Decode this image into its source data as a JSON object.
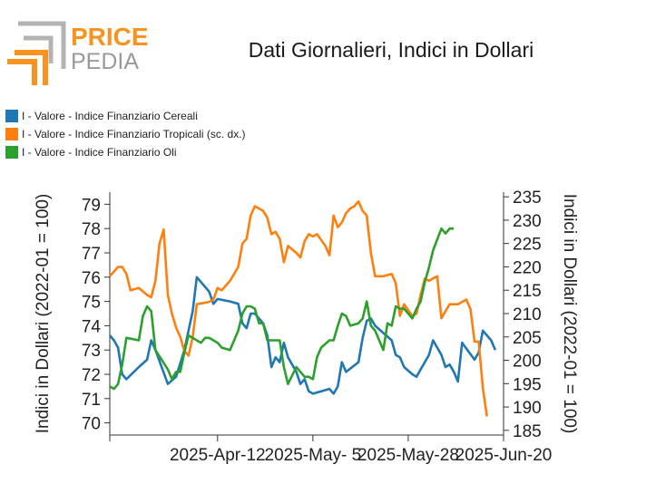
{
  "brand": {
    "name_top": "PRICE",
    "name_bottom": "PEDIA"
  },
  "colors": {
    "orange": "#f7931e",
    "gray": "#8c8c8c",
    "cereali": "#1f77b4",
    "tropicali": "#ff7f0e",
    "oli": "#2ca02c"
  },
  "chart_data": {
    "type": "line",
    "title": "Dati Giornalieri, Indici in Dollari",
    "ylabel_left": "Indici in Dollari (2022-01 = 100)",
    "ylabel_right": "Indici in Dollari (2022-01 = 100)",
    "xlim": [
      "2025-03-17",
      "2025-06-20"
    ],
    "x_ticks": [
      "2025-Apr-12",
      "2025-May- 5",
      "2025-May-28",
      "2025-Jun-20"
    ],
    "ylim_left": [
      69.5,
      79.5
    ],
    "ylim_right": [
      184,
      236
    ],
    "y_ticks_left": [
      70,
      71,
      72,
      73,
      74,
      75,
      76,
      77,
      78,
      79
    ],
    "y_ticks_right": [
      185,
      190,
      195,
      200,
      205,
      210,
      215,
      220,
      225,
      230,
      235
    ],
    "legend_position": "top-left",
    "series": [
      {
        "name": "I - Valore - Indice Finanziario Cereali",
        "axis": "left",
        "color": "#1f77b4",
        "points": [
          [
            "2025-03-17",
            73.6
          ],
          [
            "2025-03-18",
            73.4
          ],
          [
            "2025-03-19",
            73.1
          ],
          [
            "2025-03-20",
            72.0
          ],
          [
            "2025-03-21",
            71.8
          ],
          [
            "2025-03-24",
            72.3
          ],
          [
            "2025-03-26",
            72.6
          ],
          [
            "2025-03-27",
            73.4
          ],
          [
            "2025-03-28",
            73.0
          ],
          [
            "2025-03-31",
            71.6
          ],
          [
            "2025-04-02",
            71.9
          ],
          [
            "2025-04-04",
            73.0
          ],
          [
            "2025-04-06",
            74.6
          ],
          [
            "2025-04-07",
            76.0
          ],
          [
            "2025-04-10",
            75.4
          ],
          [
            "2025-04-11",
            74.9
          ],
          [
            "2025-04-12",
            75.1
          ],
          [
            "2025-04-15",
            75.0
          ],
          [
            "2025-04-17",
            74.9
          ],
          [
            "2025-04-18",
            74.1
          ],
          [
            "2025-04-19",
            73.9
          ],
          [
            "2025-04-20",
            74.5
          ],
          [
            "2025-04-21",
            74.5
          ],
          [
            "2025-04-23",
            74.1
          ],
          [
            "2025-04-24",
            73.6
          ],
          [
            "2025-04-25",
            72.3
          ],
          [
            "2025-04-26",
            72.7
          ],
          [
            "2025-04-27",
            72.5
          ],
          [
            "2025-04-28",
            73.3
          ],
          [
            "2025-04-29",
            72.7
          ],
          [
            "2025-05-01",
            72.1
          ],
          [
            "2025-05-02",
            71.6
          ],
          [
            "2025-05-03",
            71.8
          ],
          [
            "2025-05-04",
            71.3
          ],
          [
            "2025-05-05",
            71.2
          ],
          [
            "2025-05-09",
            71.4
          ],
          [
            "2025-05-10",
            71.2
          ],
          [
            "2025-05-11",
            71.5
          ],
          [
            "2025-05-12",
            72.5
          ],
          [
            "2025-05-13",
            72.1
          ],
          [
            "2025-05-16",
            72.5
          ],
          [
            "2025-05-17",
            73.5
          ],
          [
            "2025-05-18",
            74.2
          ],
          [
            "2025-05-19",
            74.3
          ],
          [
            "2025-05-20",
            74.0
          ],
          [
            "2025-05-24",
            73.4
          ],
          [
            "2025-05-25",
            72.8
          ],
          [
            "2025-05-26",
            72.7
          ],
          [
            "2025-05-27",
            72.3
          ],
          [
            "2025-05-29",
            72.0
          ],
          [
            "2025-05-30",
            71.9
          ],
          [
            "2025-05-31",
            72.2
          ],
          [
            "2025-06-02",
            72.8
          ],
          [
            "2025-06-03",
            73.4
          ],
          [
            "2025-06-05",
            72.8
          ],
          [
            "2025-06-06",
            72.3
          ],
          [
            "2025-06-07",
            72.4
          ],
          [
            "2025-06-08",
            72.1
          ],
          [
            "2025-06-09",
            71.7
          ],
          [
            "2025-06-10",
            73.3
          ],
          [
            "2025-06-13",
            72.6
          ],
          [
            "2025-06-14",
            72.9
          ],
          [
            "2025-06-15",
            73.8
          ],
          [
            "2025-06-17",
            73.4
          ],
          [
            "2025-06-18",
            73.0
          ]
        ]
      },
      {
        "name": "I - Valore - Indice Finanziario Tropicali (sc. dx.)",
        "axis": "right",
        "color": "#ff7f0e",
        "points": [
          [
            "2025-03-17",
            218.0
          ],
          [
            "2025-03-18",
            219.0
          ],
          [
            "2025-03-19",
            220.0
          ],
          [
            "2025-03-20",
            220.0
          ],
          [
            "2025-03-21",
            218.5
          ],
          [
            "2025-03-22",
            215.0
          ],
          [
            "2025-03-24",
            215.5
          ],
          [
            "2025-03-26",
            214.0
          ],
          [
            "2025-03-27",
            213.5
          ],
          [
            "2025-03-28",
            217.0
          ],
          [
            "2025-03-29",
            225.0
          ],
          [
            "2025-03-30",
            228.0
          ],
          [
            "2025-03-31",
            214.0
          ],
          [
            "2025-04-01",
            210.0
          ],
          [
            "2025-04-02",
            207.0
          ],
          [
            "2025-04-03",
            205.0
          ],
          [
            "2025-04-04",
            202.0
          ],
          [
            "2025-04-05",
            201.0
          ],
          [
            "2025-04-06",
            205.0
          ],
          [
            "2025-04-07",
            212.0
          ],
          [
            "2025-04-10",
            212.5
          ],
          [
            "2025-04-11",
            213.0
          ],
          [
            "2025-04-12",
            215.5
          ],
          [
            "2025-04-13",
            215.0
          ],
          [
            "2025-04-14",
            216.0
          ],
          [
            "2025-04-15",
            217.0
          ],
          [
            "2025-04-17",
            220.0
          ],
          [
            "2025-04-18",
            225.0
          ],
          [
            "2025-04-19",
            226.0
          ],
          [
            "2025-04-20",
            231.0
          ],
          [
            "2025-04-21",
            233.0
          ],
          [
            "2025-04-23",
            232.0
          ],
          [
            "2025-04-24",
            230.5
          ],
          [
            "2025-04-25",
            227.0
          ],
          [
            "2025-04-26",
            227.5
          ],
          [
            "2025-04-27",
            226.0
          ],
          [
            "2025-04-28",
            221.0
          ],
          [
            "2025-04-29",
            224.5
          ],
          [
            "2025-05-01",
            223.0
          ],
          [
            "2025-05-02",
            222.0
          ],
          [
            "2025-05-03",
            225.5
          ],
          [
            "2025-05-04",
            227.0
          ],
          [
            "2025-05-05",
            226.5
          ],
          [
            "2025-05-06",
            227.0
          ],
          [
            "2025-05-08",
            224.5
          ],
          [
            "2025-05-09",
            222.5
          ],
          [
            "2025-05-10",
            231.0
          ],
          [
            "2025-05-11",
            228.5
          ],
          [
            "2025-05-12",
            229.5
          ],
          [
            "2025-05-13",
            231.5
          ],
          [
            "2025-05-14",
            232.5
          ],
          [
            "2025-05-15",
            233.0
          ],
          [
            "2025-05-16",
            234.0
          ],
          [
            "2025-05-17",
            232.0
          ],
          [
            "2025-05-18",
            231.0
          ],
          [
            "2025-05-19",
            223.0
          ],
          [
            "2025-05-20",
            218.0
          ],
          [
            "2025-05-22",
            218.0
          ],
          [
            "2025-05-24",
            218.5
          ],
          [
            "2025-05-25",
            216.5
          ],
          [
            "2025-05-26",
            209.5
          ],
          [
            "2025-05-27",
            212.0
          ],
          [
            "2025-05-29",
            209.5
          ],
          [
            "2025-05-30",
            210.0
          ],
          [
            "2025-05-31",
            214.0
          ],
          [
            "2025-06-01",
            217.5
          ],
          [
            "2025-06-02",
            217.0
          ],
          [
            "2025-06-03",
            217.5
          ],
          [
            "2025-06-04",
            218.0
          ],
          [
            "2025-06-05",
            209.0
          ],
          [
            "2025-06-06",
            210.5
          ],
          [
            "2025-06-07",
            212.0
          ],
          [
            "2025-06-09",
            212.0
          ],
          [
            "2025-06-11",
            213.0
          ],
          [
            "2025-06-12",
            211.0
          ],
          [
            "2025-06-13",
            204.0
          ],
          [
            "2025-06-14",
            204.0
          ],
          [
            "2025-06-15",
            194.0
          ],
          [
            "2025-06-16",
            188.0
          ]
        ]
      },
      {
        "name": "I - Valore - Indice Finanziario Oli",
        "axis": "left",
        "color": "#2ca02c",
        "points": [
          [
            "2025-03-17",
            71.5
          ],
          [
            "2025-03-18",
            71.4
          ],
          [
            "2025-03-19",
            71.6
          ],
          [
            "2025-03-20",
            72.4
          ],
          [
            "2025-03-21",
            73.5
          ],
          [
            "2025-03-24",
            73.4
          ],
          [
            "2025-03-25",
            74.4
          ],
          [
            "2025-03-26",
            74.8
          ],
          [
            "2025-03-27",
            74.6
          ],
          [
            "2025-03-28",
            73.0
          ],
          [
            "2025-03-31",
            72.2
          ],
          [
            "2025-04-01",
            71.8
          ],
          [
            "2025-04-02",
            72.1
          ],
          [
            "2025-04-03",
            72.1
          ],
          [
            "2025-04-04",
            72.9
          ],
          [
            "2025-04-05",
            73.6
          ],
          [
            "2025-04-07",
            73.4
          ],
          [
            "2025-04-08",
            73.3
          ],
          [
            "2025-04-09",
            73.5
          ],
          [
            "2025-04-10",
            73.5
          ],
          [
            "2025-04-12",
            73.3
          ],
          [
            "2025-04-13",
            73.1
          ],
          [
            "2025-04-15",
            73.0
          ],
          [
            "2025-04-17",
            73.8
          ],
          [
            "2025-04-18",
            74.5
          ],
          [
            "2025-04-19",
            74.8
          ],
          [
            "2025-04-20",
            74.8
          ],
          [
            "2025-04-21",
            74.7
          ],
          [
            "2025-04-22",
            74.1
          ],
          [
            "2025-04-23",
            74.1
          ],
          [
            "2025-04-24",
            73.4
          ],
          [
            "2025-04-25",
            73.4
          ],
          [
            "2025-04-26",
            73.4
          ],
          [
            "2025-04-27",
            73.4
          ],
          [
            "2025-04-28",
            72.3
          ],
          [
            "2025-04-29",
            71.6
          ],
          [
            "2025-05-01",
            72.3
          ],
          [
            "2025-05-03",
            71.9
          ],
          [
            "2025-05-04",
            71.9
          ],
          [
            "2025-05-05",
            71.8
          ],
          [
            "2025-05-06",
            72.7
          ],
          [
            "2025-05-07",
            73.1
          ],
          [
            "2025-05-09",
            73.4
          ],
          [
            "2025-05-10",
            73.4
          ],
          [
            "2025-05-11",
            74.0
          ],
          [
            "2025-05-12",
            74.5
          ],
          [
            "2025-05-13",
            74.4
          ],
          [
            "2025-05-14",
            74.0
          ],
          [
            "2025-05-16",
            74.1
          ],
          [
            "2025-05-17",
            74.3
          ],
          [
            "2025-05-18",
            75.0
          ],
          [
            "2025-05-19",
            74.0
          ],
          [
            "2025-05-20",
            73.8
          ],
          [
            "2025-05-22",
            73.0
          ],
          [
            "2025-05-23",
            74.1
          ],
          [
            "2025-05-24",
            74.0
          ],
          [
            "2025-05-25",
            74.8
          ],
          [
            "2025-05-26",
            74.7
          ],
          [
            "2025-05-27",
            74.7
          ],
          [
            "2025-05-29",
            74.3
          ],
          [
            "2025-05-30",
            74.7
          ],
          [
            "2025-05-31",
            75.0
          ],
          [
            "2025-06-01",
            75.8
          ],
          [
            "2025-06-02",
            76.4
          ],
          [
            "2025-06-03",
            77.1
          ],
          [
            "2025-06-05",
            78.0
          ],
          [
            "2025-06-06",
            77.8
          ],
          [
            "2025-06-07",
            78.0
          ],
          [
            "2025-06-08",
            78.0
          ]
        ]
      }
    ]
  }
}
